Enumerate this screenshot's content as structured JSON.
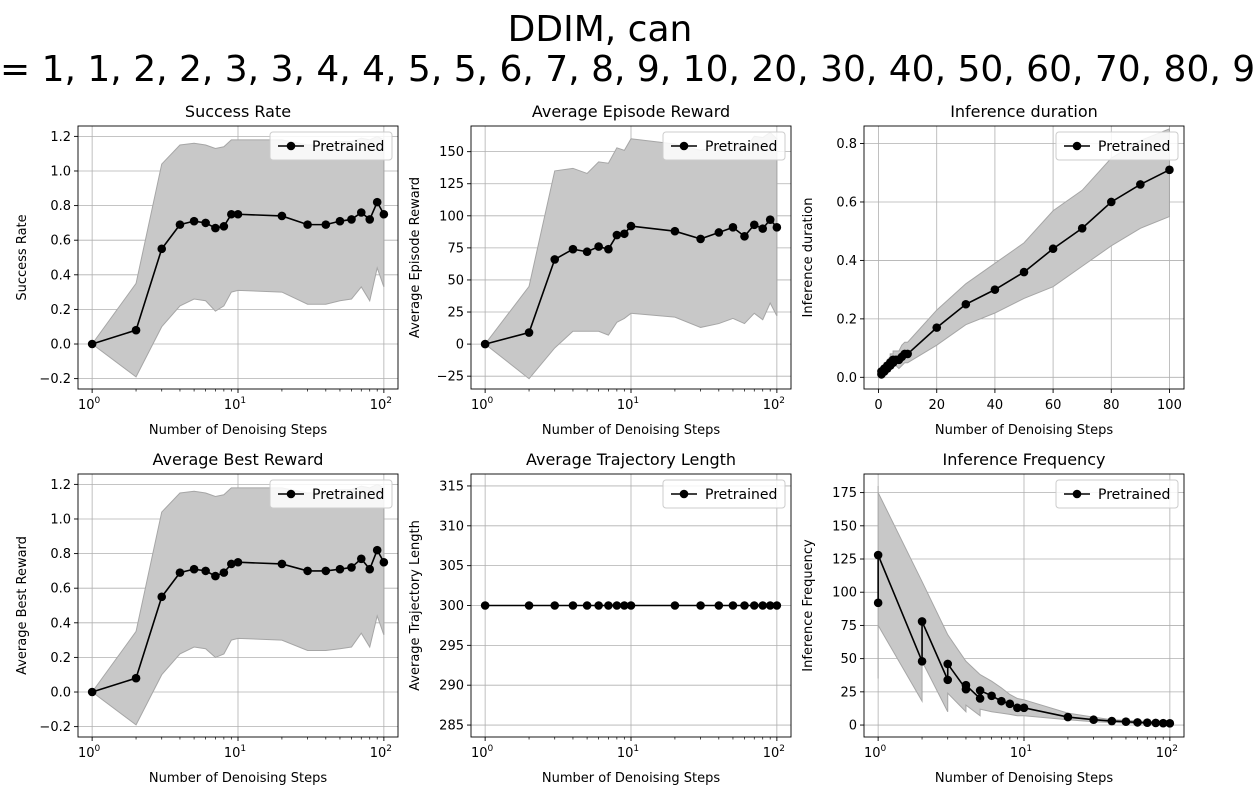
{
  "figure": {
    "title_line1": "DDIM, can",
    "title_line2": "= 1, 1, 2, 2, 3, 3, 4, 4, 5, 5, 6, 7, 8, 9, 10, 20, 30, 40, 50, 60, 70, 80, 9",
    "band_color": "#c8c8c8",
    "band_edge_color": "#a6a6a6",
    "line_color": "#000000",
    "grid": true
  },
  "chart_data": [
    {
      "type": "line",
      "title": "Success Rate",
      "xlabel": "Number of Denoising Steps",
      "ylabel": "Success Rate",
      "xscale": "log",
      "xlim": [
        0.8,
        125
      ],
      "ylim": [
        -0.26,
        1.26
      ],
      "yticks": [
        -0.2,
        0.0,
        0.2,
        0.4,
        0.6,
        0.8,
        1.0,
        1.2
      ],
      "ytick_labels": [
        "−0.2",
        "0.0",
        "0.2",
        "0.4",
        "0.6",
        "0.8",
        "1.0",
        "1.2"
      ],
      "xticks": [
        1,
        10,
        100
      ],
      "xtick_labels": [
        [
          "10",
          "0"
        ],
        [
          "10",
          "1"
        ],
        [
          "10",
          "2"
        ]
      ],
      "legend": "top-right",
      "series": [
        {
          "name": "Pretrained",
          "x": [
            1,
            2,
            3,
            4,
            5,
            6,
            7,
            8,
            9,
            10,
            20,
            30,
            40,
            50,
            60,
            70,
            80,
            90,
            100
          ],
          "y": [
            0.0,
            0.08,
            0.55,
            0.69,
            0.71,
            0.7,
            0.67,
            0.68,
            0.75,
            0.75,
            0.74,
            0.69,
            0.69,
            0.71,
            0.72,
            0.76,
            0.72,
            0.82,
            0.75
          ],
          "lower": [
            0.0,
            -0.19,
            0.1,
            0.22,
            0.26,
            0.25,
            0.19,
            0.22,
            0.3,
            0.31,
            0.3,
            0.23,
            0.23,
            0.25,
            0.26,
            0.33,
            0.25,
            0.44,
            0.33
          ],
          "upper": [
            0.0,
            0.35,
            1.04,
            1.15,
            1.16,
            1.15,
            1.13,
            1.14,
            1.18,
            1.18,
            1.18,
            1.15,
            1.15,
            1.17,
            1.17,
            1.19,
            1.18,
            1.2,
            1.18
          ]
        }
      ]
    },
    {
      "type": "line",
      "title": "Average Episode Reward",
      "xlabel": "Number of Denoising Steps",
      "ylabel": "Average Episode Reward",
      "xscale": "log",
      "xlim": [
        0.8,
        125
      ],
      "ylim": [
        -35,
        170
      ],
      "yticks": [
        -25,
        0,
        25,
        50,
        75,
        100,
        125,
        150
      ],
      "ytick_labels": [
        "−25",
        "0",
        "25",
        "50",
        "75",
        "100",
        "125",
        "150"
      ],
      "xticks": [
        1,
        10,
        100
      ],
      "xtick_labels": [
        [
          "10",
          "0"
        ],
        [
          "10",
          "1"
        ],
        [
          "10",
          "2"
        ]
      ],
      "legend": "top-right",
      "series": [
        {
          "name": "Pretrained",
          "x": [
            1,
            2,
            3,
            4,
            5,
            6,
            7,
            8,
            9,
            10,
            20,
            30,
            40,
            50,
            60,
            70,
            80,
            90,
            100
          ],
          "y": [
            0,
            9,
            66,
            74,
            72,
            76,
            74,
            85,
            86,
            92,
            88,
            82,
            87,
            91,
            84,
            93,
            90,
            97,
            91
          ],
          "lower": [
            0,
            -27,
            -3,
            10,
            10,
            10,
            7,
            17,
            20,
            24,
            21,
            13,
            16,
            20,
            16,
            24,
            19,
            32,
            22
          ],
          "upper": [
            0,
            45,
            135,
            137,
            133,
            142,
            141,
            153,
            151,
            160,
            156,
            151,
            154,
            158,
            152,
            162,
            161,
            165,
            160
          ]
        }
      ]
    },
    {
      "type": "line",
      "title": "Inference duration",
      "xlabel": "Number of Denoising Steps",
      "ylabel": "Inference duration",
      "xscale": "linear",
      "xlim": [
        -5,
        105
      ],
      "ylim": [
        -0.04,
        0.86
      ],
      "yticks": [
        0.0,
        0.2,
        0.4,
        0.6,
        0.8
      ],
      "ytick_labels": [
        "0.0",
        "0.2",
        "0.4",
        "0.6",
        "0.8"
      ],
      "xticks": [
        0,
        20,
        40,
        60,
        80,
        100
      ],
      "xtick_labels": [
        [
          "0",
          ""
        ],
        [
          "20",
          ""
        ],
        [
          "40",
          ""
        ],
        [
          "60",
          ""
        ],
        [
          "80",
          ""
        ],
        [
          "100",
          ""
        ]
      ],
      "legend": "top-right",
      "series": [
        {
          "name": "Pretrained",
          "x": [
            1,
            1,
            2,
            2,
            3,
            3,
            4,
            4,
            5,
            5,
            6,
            7,
            8,
            9,
            10,
            20,
            30,
            40,
            50,
            60,
            70,
            80,
            90,
            100
          ],
          "y": [
            0.01,
            0.02,
            0.02,
            0.03,
            0.03,
            0.04,
            0.04,
            0.05,
            0.05,
            0.06,
            0.06,
            0.06,
            0.07,
            0.08,
            0.08,
            0.17,
            0.25,
            0.3,
            0.36,
            0.44,
            0.51,
            0.6,
            0.66,
            0.71
          ],
          "lower": [
            0.0,
            0.01,
            0.01,
            0.02,
            0.02,
            0.02,
            0.02,
            0.03,
            0.03,
            0.04,
            0.04,
            0.03,
            0.04,
            0.05,
            0.05,
            0.11,
            0.18,
            0.22,
            0.27,
            0.31,
            0.38,
            0.45,
            0.51,
            0.55
          ],
          "upper": [
            0.02,
            0.03,
            0.04,
            0.05,
            0.05,
            0.06,
            0.07,
            0.08,
            0.08,
            0.09,
            0.09,
            0.09,
            0.11,
            0.12,
            0.12,
            0.23,
            0.32,
            0.39,
            0.46,
            0.57,
            0.64,
            0.75,
            0.81,
            0.85
          ]
        }
      ]
    },
    {
      "type": "line",
      "title": "Average Best Reward",
      "xlabel": "Number of Denoising Steps",
      "ylabel": "Average Best Reward",
      "xscale": "log",
      "xlim": [
        0.8,
        125
      ],
      "ylim": [
        -0.26,
        1.26
      ],
      "yticks": [
        -0.2,
        0.0,
        0.2,
        0.4,
        0.6,
        0.8,
        1.0,
        1.2
      ],
      "ytick_labels": [
        "−0.2",
        "0.0",
        "0.2",
        "0.4",
        "0.6",
        "0.8",
        "1.0",
        "1.2"
      ],
      "xticks": [
        1,
        10,
        100
      ],
      "xtick_labels": [
        [
          "10",
          "0"
        ],
        [
          "10",
          "1"
        ],
        [
          "10",
          "2"
        ]
      ],
      "legend": "top-right",
      "series": [
        {
          "name": "Pretrained",
          "x": [
            1,
            2,
            3,
            4,
            5,
            6,
            7,
            8,
            9,
            10,
            20,
            30,
            40,
            50,
            60,
            70,
            80,
            90,
            100
          ],
          "y": [
            0.0,
            0.08,
            0.55,
            0.69,
            0.71,
            0.7,
            0.67,
            0.69,
            0.74,
            0.75,
            0.74,
            0.7,
            0.7,
            0.71,
            0.72,
            0.77,
            0.71,
            0.82,
            0.75
          ],
          "lower": [
            0.0,
            -0.19,
            0.1,
            0.22,
            0.26,
            0.25,
            0.2,
            0.22,
            0.3,
            0.31,
            0.3,
            0.24,
            0.24,
            0.25,
            0.26,
            0.34,
            0.26,
            0.44,
            0.33
          ],
          "upper": [
            0.0,
            0.35,
            1.04,
            1.15,
            1.16,
            1.15,
            1.13,
            1.14,
            1.18,
            1.18,
            1.18,
            1.15,
            1.15,
            1.17,
            1.17,
            1.19,
            1.18,
            1.2,
            1.18
          ]
        }
      ]
    },
    {
      "type": "line",
      "title": "Average Trajectory Length",
      "xlabel": "Number of Denoising Steps",
      "ylabel": "Average Trajectory Length",
      "xscale": "log",
      "xlim": [
        0.8,
        125
      ],
      "ylim": [
        283.5,
        316.5
      ],
      "yticks": [
        285,
        290,
        295,
        300,
        305,
        310,
        315
      ],
      "ytick_labels": [
        "285",
        "290",
        "295",
        "300",
        "305",
        "310",
        "315"
      ],
      "xticks": [
        1,
        10,
        100
      ],
      "xtick_labels": [
        [
          "10",
          "0"
        ],
        [
          "10",
          "1"
        ],
        [
          "10",
          "2"
        ]
      ],
      "legend": "top-right",
      "series": [
        {
          "name": "Pretrained",
          "x": [
            1,
            2,
            3,
            4,
            5,
            6,
            7,
            8,
            9,
            10,
            20,
            30,
            40,
            50,
            60,
            70,
            80,
            90,
            100
          ],
          "y": [
            300,
            300,
            300,
            300,
            300,
            300,
            300,
            300,
            300,
            300,
            300,
            300,
            300,
            300,
            300,
            300,
            300,
            300,
            300
          ],
          "lower": [
            300,
            300,
            300,
            300,
            300,
            300,
            300,
            300,
            300,
            300,
            300,
            300,
            300,
            300,
            300,
            300,
            300,
            300,
            300
          ],
          "upper": [
            300,
            300,
            300,
            300,
            300,
            300,
            300,
            300,
            300,
            300,
            300,
            300,
            300,
            300,
            300,
            300,
            300,
            300,
            300
          ]
        }
      ]
    },
    {
      "type": "line",
      "title": "Inference Frequency",
      "xlabel": "Number of Denoising Steps",
      "ylabel": "Inference Frequency",
      "xscale": "log",
      "xlim": [
        0.8,
        125
      ],
      "ylim": [
        -9,
        189
      ],
      "yticks": [
        0,
        25,
        50,
        75,
        100,
        125,
        150,
        175
      ],
      "ytick_labels": [
        "0",
        "25",
        "50",
        "75",
        "100",
        "125",
        "150",
        "175"
      ],
      "xticks": [
        1,
        10,
        100
      ],
      "xtick_labels": [
        [
          "10",
          "0"
        ],
        [
          "10",
          "1"
        ],
        [
          "10",
          "2"
        ]
      ],
      "legend": "top-right",
      "series": [
        {
          "name": "Pretrained",
          "x": [
            1,
            1,
            2,
            2,
            3,
            3,
            4,
            4,
            5,
            5,
            6,
            7,
            8,
            9,
            10,
            20,
            30,
            40,
            50,
            60,
            70,
            80,
            90,
            100
          ],
          "y": [
            92,
            128,
            48,
            78,
            34,
            46,
            27,
            30,
            20,
            26,
            22,
            18,
            16,
            13,
            13,
            6,
            4,
            3,
            2.5,
            2,
            1.8,
            1.6,
            1.4,
            1.3
          ],
          "lower": [
            35,
            75,
            18,
            48,
            10,
            24,
            10,
            15,
            7,
            12,
            10,
            9,
            8,
            7,
            7,
            4,
            2.5,
            2,
            1.5,
            1.2,
            1,
            0.9,
            0.8,
            0.7
          ],
          "upper": [
            180,
            175,
            108,
            108,
            68,
            68,
            48,
            48,
            38,
            38,
            33,
            28,
            23,
            20,
            19,
            9,
            6,
            4,
            3.5,
            3,
            2.6,
            2.3,
            2,
            1.9
          ]
        }
      ]
    }
  ]
}
